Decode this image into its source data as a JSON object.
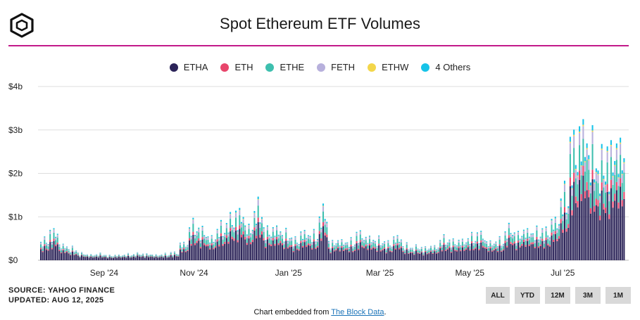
{
  "title": "Spot Ethereum ETF Volumes",
  "legend_labels": {
    "etha": "ETHA",
    "eth": "ETH",
    "ethe": "ETHE",
    "feth": "FETH",
    "ethw": "ETHW",
    "others": "4 Others"
  },
  "colors": {
    "etha": "#2b2358",
    "eth": "#e8456b",
    "ethe": "#3dbfae",
    "feth": "#b7b0dc",
    "ethw": "#f3d64a",
    "others": "#17c3e8",
    "divider": "#c21a8a",
    "grid": "#dddddd"
  },
  "source": {
    "line1": "SOURCE: YAHOO FINANCE",
    "line2": "UPDATED: AUG 12, 2025"
  },
  "range_buttons": {
    "all": "ALL",
    "ytd": "YTD",
    "m12": "12M",
    "m3": "3M",
    "m1": "1M"
  },
  "embed": {
    "prefix": "Chart embedded from ",
    "link": "The Block Data",
    "suffix": "."
  },
  "chart_data": {
    "type": "bar",
    "stacked": true,
    "title": "Spot Ethereum ETF Volumes",
    "y_unit": "USD billions",
    "ylim": [
      0,
      4
    ],
    "y_ticks": [
      0,
      1,
      2,
      3,
      4
    ],
    "y_tick_labels": [
      "$0",
      "$1b",
      "$2b",
      "$3b",
      "$4b"
    ],
    "x_tick_labels": [
      "Sep '24",
      "Nov '24",
      "Jan '25",
      "Mar '25",
      "May '25",
      "Jul '25"
    ],
    "x_tick_positions": [
      "2024-09-03",
      "2024-11-01",
      "2025-01-02",
      "2025-03-03",
      "2025-05-01",
      "2025-07-01"
    ],
    "x_start": "2024-07-23",
    "x_end": "2025-08-11",
    "grid": true,
    "legend_position": "top",
    "series_keys": [
      "etha",
      "eth",
      "ethe",
      "feth",
      "ethw",
      "others"
    ],
    "series": [
      {
        "name": "ETHA"
      },
      {
        "name": "ETH"
      },
      {
        "name": "ETHE"
      },
      {
        "name": "FETH"
      },
      {
        "name": "ETHW"
      },
      {
        "name": "4 Others"
      }
    ],
    "weekly_totals": [
      0.42,
      0.6,
      0.33,
      0.25,
      0.15,
      0.12,
      0.13,
      0.1,
      0.11,
      0.12,
      0.14,
      0.13,
      0.12,
      0.13,
      0.16,
      0.36,
      0.72,
      0.62,
      0.48,
      0.67,
      0.85,
      0.98,
      0.73,
      1.1,
      0.64,
      0.68,
      0.55,
      0.43,
      0.58,
      0.52,
      1.0,
      0.38,
      0.42,
      0.4,
      0.55,
      0.48,
      0.42,
      0.36,
      0.48,
      0.3,
      0.28,
      0.26,
      0.3,
      0.45,
      0.4,
      0.42,
      0.48,
      0.53,
      0.38,
      0.4,
      0.66,
      0.55,
      0.64,
      0.6,
      0.62,
      0.85,
      1.35,
      2.35,
      2.7,
      2.25,
      2.05,
      2.25,
      2.45
    ],
    "weekly_shares": {
      "etha": 0.6,
      "eth": 0.07,
      "ethe": 0.19,
      "feth": 0.09,
      "ethw": 0.01,
      "others": 0.04
    }
  }
}
